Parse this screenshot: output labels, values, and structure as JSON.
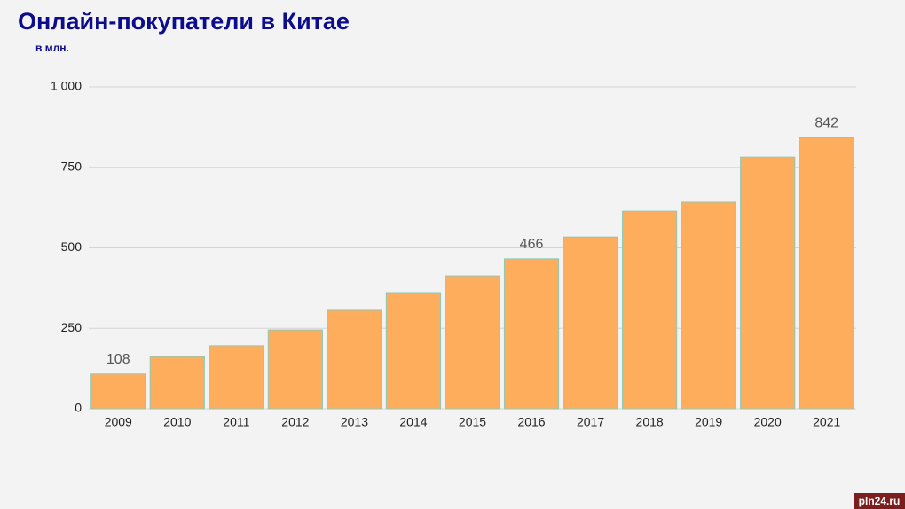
{
  "chart_data": {
    "type": "bar",
    "title": "Онлайн-покупатели в Китае",
    "subtitle": "в млн.",
    "categories": [
      "2009",
      "2010",
      "2011",
      "2012",
      "2013",
      "2014",
      "2015",
      "2016",
      "2017",
      "2018",
      "2019",
      "2020",
      "2021"
    ],
    "values": [
      108,
      162,
      196,
      245,
      306,
      361,
      413,
      466,
      534,
      614,
      642,
      782,
      842
    ],
    "value_labels": [
      "108",
      null,
      null,
      null,
      null,
      null,
      null,
      "466",
      null,
      null,
      null,
      null,
      "842"
    ],
    "color": "#fdad5c",
    "ylim": [
      0,
      1000
    ],
    "yticks": [
      0,
      250,
      500,
      750,
      {
        "value": 1000,
        "label": "1 000"
      }
    ],
    "grid": true
  },
  "watermark": "pln24.ru"
}
